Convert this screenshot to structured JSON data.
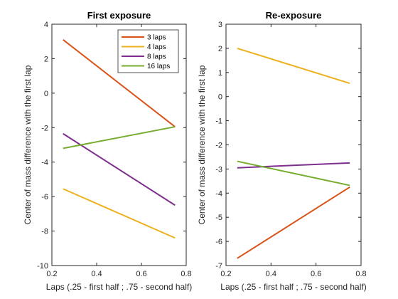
{
  "chart_data": [
    {
      "type": "line",
      "title": "First exposure",
      "xlabel": "Laps (.25 - first half ; .75 - second half)",
      "ylabel": "Center of mass difference with the first lap",
      "xlim": [
        0.2,
        0.8
      ],
      "ylim": [
        -10,
        4
      ],
      "xticks": [
        0.2,
        0.4,
        0.6,
        0.8
      ],
      "xtick_labels": [
        "0.2",
        "0.4",
        "0.6",
        "0.8"
      ],
      "yticks": [
        -10,
        -8,
        -6,
        -4,
        -2,
        0,
        2,
        4
      ],
      "ytick_labels": [
        "-10",
        "-8",
        "-6",
        "-4",
        "-2",
        "0",
        "2",
        "4"
      ],
      "grid": false,
      "legend": {
        "placement": "top-right"
      },
      "x": [
        0.25,
        0.75
      ],
      "series": [
        {
          "name": "3 laps",
          "color": "#D95319",
          "values": [
            3.1,
            -1.95
          ]
        },
        {
          "name": "4 laps",
          "color": "#EDB120",
          "values": [
            -5.55,
            -8.4
          ]
        },
        {
          "name": "8 laps",
          "color": "#7E2F8E",
          "values": [
            -2.35,
            -6.5
          ]
        },
        {
          "name": "16 laps",
          "color": "#77AC30",
          "values": [
            -3.2,
            -1.95
          ]
        }
      ]
    },
    {
      "type": "line",
      "title": "Re-exposure",
      "xlabel": "Laps (.25 - first half ; .75 - second half)",
      "ylabel": "Center of mass difference with the first lap",
      "xlim": [
        0.2,
        0.8
      ],
      "ylim": [
        -7,
        3
      ],
      "xticks": [
        0.2,
        0.4,
        0.6,
        0.8
      ],
      "xtick_labels": [
        "0.2",
        "0.4",
        "0.6",
        "0.8"
      ],
      "yticks": [
        -7,
        -6,
        -5,
        -4,
        -3,
        -2,
        -1,
        0,
        1,
        2,
        3
      ],
      "ytick_labels": [
        "-7",
        "-6",
        "-5",
        "-4",
        "-3",
        "-2",
        "-1",
        "0",
        "1",
        "2",
        "3"
      ],
      "grid": false,
      "x": [
        0.25,
        0.75
      ],
      "series": [
        {
          "name": "3 laps",
          "color": "#D95319",
          "values": [
            -6.7,
            -3.75
          ]
        },
        {
          "name": "4 laps",
          "color": "#EDB120",
          "values": [
            2.0,
            0.55
          ]
        },
        {
          "name": "8 laps",
          "color": "#7E2F8E",
          "values": [
            -2.95,
            -2.75
          ]
        },
        {
          "name": "16 laps",
          "color": "#77AC30",
          "values": [
            -2.68,
            -3.68
          ]
        }
      ]
    }
  ]
}
